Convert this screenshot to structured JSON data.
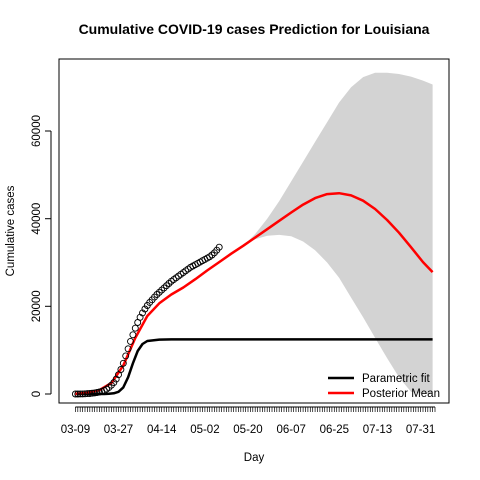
{
  "chart_data": {
    "type": "line",
    "title": "Cumulative COVID-19 cases Prediction for Louisiana",
    "xlabel": "Day",
    "ylabel": "Cumulative cases",
    "x_unit": "days since 03-09",
    "x_range": [
      -1,
      150
    ],
    "ylim": [
      0,
      73000
    ],
    "x_tick_labels": [
      "03-09",
      "03-27",
      "04-14",
      "05-02",
      "05-20",
      "06-07",
      "06-25",
      "07-13",
      "07-31"
    ],
    "x_tick_values": [
      0,
      18,
      36,
      54,
      72,
      90,
      108,
      126,
      144
    ],
    "y_ticks": [
      0,
      20000,
      40000,
      60000
    ],
    "y_tick_labels": [
      "0",
      "20000",
      "40000",
      "60000"
    ],
    "legend": {
      "position": "bottom-right",
      "entries": [
        "Parametric fit",
        "Posterior Mean"
      ]
    },
    "series": [
      {
        "name": "Posterior Mean",
        "color": "#ff0000",
        "x": [
          0,
          5,
          10,
          15,
          20,
          25,
          30,
          35,
          40,
          45,
          50,
          55,
          60,
          65,
          70,
          75,
          80,
          85,
          90,
          95,
          100,
          105,
          110,
          115,
          120,
          125,
          130,
          135,
          140,
          145,
          149
        ],
        "y": [
          60,
          300,
          900,
          2500,
          6500,
          12800,
          17800,
          20700,
          22700,
          24300,
          26200,
          28200,
          30100,
          32000,
          33800,
          35700,
          37600,
          39500,
          41400,
          43200,
          44700,
          45600,
          45800,
          45300,
          44100,
          42200,
          39700,
          36800,
          33500,
          30100,
          27800
        ]
      },
      {
        "name": "Parametric fit",
        "color": "#000000",
        "x": [
          0,
          10,
          12,
          14,
          16,
          18,
          20,
          22,
          24,
          26,
          28,
          30,
          35,
          40,
          60,
          80,
          100,
          120,
          149
        ],
        "y": [
          0,
          0,
          10,
          40,
          150,
          500,
          1500,
          3800,
          7000,
          9800,
          11400,
          12100,
          12400,
          12450,
          12450,
          12450,
          12450,
          12450,
          12450
        ]
      }
    ],
    "credible_band": {
      "color": "#d3d3d3",
      "x": [
        60,
        65,
        70,
        75,
        80,
        85,
        90,
        95,
        100,
        105,
        110,
        115,
        120,
        125,
        130,
        135,
        140,
        145,
        149
      ],
      "upper": [
        30100,
        32000,
        33800,
        36500,
        40000,
        44000,
        48500,
        53000,
        57500,
        62000,
        66500,
        70000,
        72300,
        73300,
        73300,
        73000,
        72400,
        71500,
        70600
      ],
      "lower": [
        30100,
        32000,
        33800,
        35300,
        36100,
        36300,
        36000,
        34800,
        32800,
        30000,
        26500,
        22000,
        17500,
        12800,
        8200,
        3800,
        500,
        0,
        0
      ]
    },
    "observed_points": {
      "x": [
        0,
        1,
        2,
        3,
        4,
        5,
        6,
        7,
        8,
        9,
        10,
        11,
        12,
        13,
        14,
        15,
        16,
        17,
        18,
        19,
        20,
        21,
        22,
        23,
        24,
        25,
        26,
        27,
        28,
        29,
        30,
        31,
        32,
        33,
        34,
        35,
        36,
        37,
        38,
        39,
        40,
        41,
        42,
        43,
        44,
        45,
        46,
        47,
        48,
        49,
        50,
        51,
        52,
        53,
        54,
        55,
        56,
        57,
        58,
        59,
        60
      ],
      "y": [
        0,
        10,
        20,
        30,
        50,
        80,
        120,
        180,
        260,
        350,
        460,
        600,
        800,
        1100,
        1500,
        2000,
        2600,
        3400,
        4400,
        5600,
        7000,
        8700,
        10300,
        12000,
        13500,
        15000,
        16300,
        17500,
        18500,
        19400,
        20200,
        20900,
        21500,
        22100,
        22700,
        23200,
        23700,
        24200,
        24700,
        25200,
        25700,
        26100,
        26500,
        26900,
        27300,
        27700,
        28100,
        28500,
        28900,
        29200,
        29500,
        29800,
        30100,
        30400,
        30700,
        31000,
        31300,
        31700,
        32200,
        32800,
        33500
      ]
    }
  }
}
